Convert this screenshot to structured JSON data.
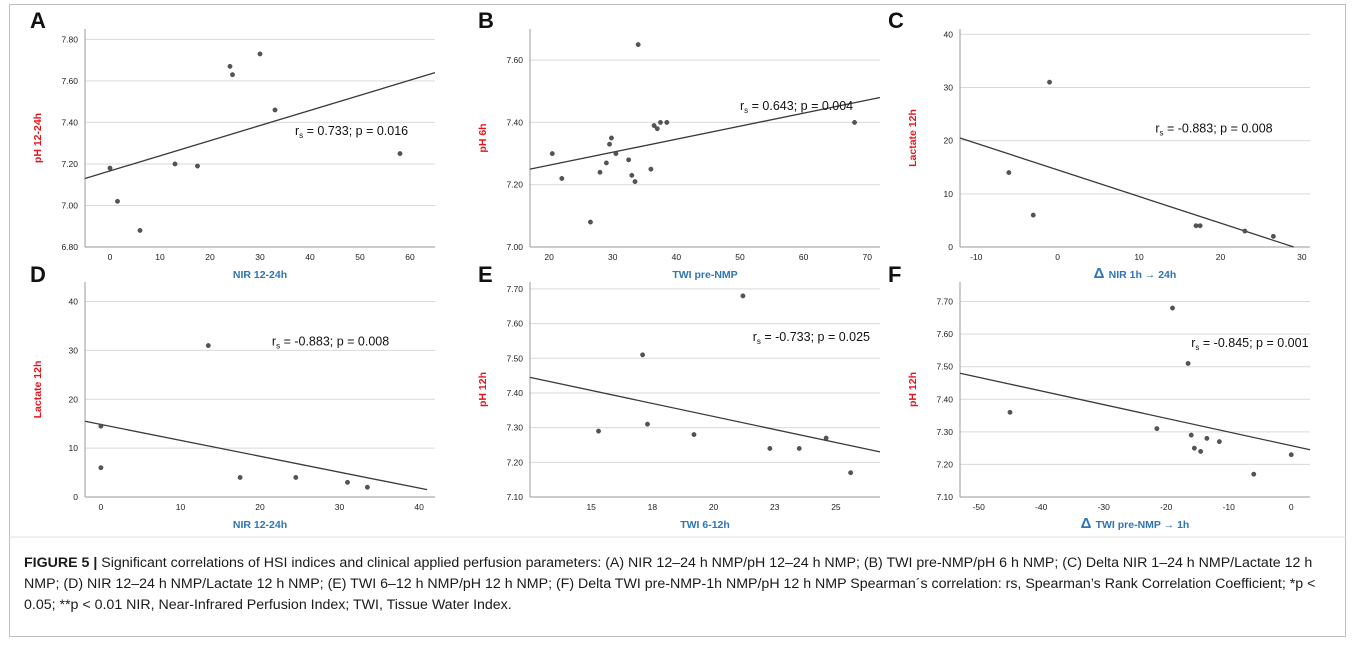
{
  "chart_data": [
    {
      "panel": "A",
      "type": "scatter",
      "xlabel": "NIR 12-24h",
      "ylabel": "pH 12-24h",
      "xlim": [
        -5,
        65
      ],
      "ylim": [
        6.8,
        7.85
      ],
      "xticks": [
        "0",
        "10",
        "20",
        "30",
        "40",
        "50",
        "60"
      ],
      "yticks": [
        "6.80",
        "7.00",
        "7.20",
        "7.40",
        "7.60",
        "7.80"
      ],
      "xtick_values": [
        0,
        10,
        20,
        30,
        40,
        50,
        60
      ],
      "ytick_values": [
        6.8,
        7.0,
        7.2,
        7.4,
        7.6,
        7.8
      ],
      "points": [
        [
          0,
          7.18
        ],
        [
          1.5,
          7.02
        ],
        [
          6,
          6.88
        ],
        [
          13,
          7.2
        ],
        [
          17.5,
          7.19
        ],
        [
          24,
          7.67
        ],
        [
          24.5,
          7.63
        ],
        [
          30,
          7.73
        ],
        [
          33,
          7.46
        ],
        [
          58,
          7.25
        ]
      ],
      "regression": [
        [
          -5,
          7.13
        ],
        [
          65,
          7.64
        ]
      ],
      "annotation": {
        "prefix": "r",
        "sub": "s",
        "text": " = 0.733; p = 0.016"
      },
      "annotation_pos": [
        37,
        7.34
      ],
      "xlabel_color": "#2e75b6",
      "ylabel_color": "#e8141b"
    },
    {
      "panel": "B",
      "type": "scatter",
      "xlabel": "TWI pre-NMP",
      "ylabel": "pH 6h",
      "xlim": [
        17,
        72
      ],
      "ylim": [
        7.0,
        7.7
      ],
      "xticks": [
        "20",
        "30",
        "40",
        "50",
        "60",
        "70"
      ],
      "yticks": [
        "7.00",
        "7.20",
        "7.40",
        "7.60"
      ],
      "xtick_values": [
        20,
        30,
        40,
        50,
        60,
        70
      ],
      "ytick_values": [
        7.0,
        7.2,
        7.4,
        7.6
      ],
      "points": [
        [
          20.5,
          7.3
        ],
        [
          22,
          7.22
        ],
        [
          26.5,
          7.08
        ],
        [
          28,
          7.24
        ],
        [
          29,
          7.27
        ],
        [
          29.5,
          7.33
        ],
        [
          29.8,
          7.35
        ],
        [
          30.5,
          7.3
        ],
        [
          32.5,
          7.28
        ],
        [
          33,
          7.23
        ],
        [
          33.5,
          7.21
        ],
        [
          34,
          7.65
        ],
        [
          36,
          7.25
        ],
        [
          36.5,
          7.39
        ],
        [
          37,
          7.38
        ],
        [
          37.5,
          7.4
        ],
        [
          38.5,
          7.4
        ],
        [
          68,
          7.4
        ]
      ],
      "regression": [
        [
          17,
          7.25
        ],
        [
          72,
          7.48
        ]
      ],
      "annotation": {
        "prefix": "r",
        "sub": "s",
        "text": " = 0.643; p = 0.004"
      },
      "annotation_pos": [
        50,
        7.44
      ],
      "xlabel_color": "#2e75b6",
      "ylabel_color": "#e8141b"
    },
    {
      "panel": "C",
      "type": "scatter",
      "xlabel": "NIR 1h → 24h",
      "ylabel": "Lactate 12h",
      "xlabel_delta": "Δ",
      "xlim": [
        -12,
        31
      ],
      "ylim": [
        0,
        41
      ],
      "xticks": [
        "-10",
        "0",
        "10",
        "20",
        "30"
      ],
      "yticks": [
        "0",
        "10",
        "20",
        "30",
        "40"
      ],
      "xtick_values": [
        -10,
        0,
        10,
        20,
        30
      ],
      "ytick_values": [
        0,
        10,
        20,
        30,
        40
      ],
      "points": [
        [
          -1,
          31
        ],
        [
          -6,
          14
        ],
        [
          -3,
          6
        ],
        [
          17,
          4
        ],
        [
          17.5,
          4
        ],
        [
          23,
          3
        ],
        [
          26.5,
          2
        ]
      ],
      "regression": [
        [
          -12,
          20.5
        ],
        [
          29,
          0
        ]
      ],
      "annotation": {
        "prefix": "r",
        "sub": "s",
        "text": " = -0.883; p = 0.008"
      },
      "annotation_pos": [
        12,
        21.5
      ],
      "xlabel_color": "#2e75b6",
      "ylabel_color": "#e8141b"
    },
    {
      "panel": "D",
      "type": "scatter",
      "xlabel": "NIR 12-24h",
      "ylabel": "Lactate 12h",
      "xlim": [
        -2,
        42
      ],
      "ylim": [
        0,
        44
      ],
      "xticks": [
        "0",
        "10",
        "20",
        "30",
        "40"
      ],
      "yticks": [
        "0",
        "10",
        "20",
        "30",
        "40"
      ],
      "xtick_values": [
        0,
        10,
        20,
        30,
        40
      ],
      "ytick_values": [
        0,
        10,
        20,
        30,
        40
      ],
      "points": [
        [
          0,
          14.5
        ],
        [
          0,
          6
        ],
        [
          13.5,
          31
        ],
        [
          17.5,
          4
        ],
        [
          24.5,
          4
        ],
        [
          31,
          3
        ],
        [
          33.5,
          2
        ]
      ],
      "regression": [
        [
          -2,
          15.5
        ],
        [
          41,
          1.5
        ]
      ],
      "annotation": {
        "prefix": "r",
        "sub": "s",
        "text": " = -0.883; p = 0.008"
      },
      "annotation_pos": [
        21.5,
        31
      ],
      "xlabel_color": "#2e75b6",
      "ylabel_color": "#e8141b"
    },
    {
      "panel": "E",
      "type": "scatter",
      "xlabel": "TWI 6-12h",
      "ylabel": "pH 12h",
      "xlim": [
        12.5,
        26.8
      ],
      "ylim": [
        7.1,
        7.72
      ],
      "xticks": [
        "15",
        "18",
        "20",
        "23",
        "25"
      ],
      "yticks": [
        "7.10",
        "7.20",
        "7.30",
        "7.40",
        "7.50",
        "7.60",
        "7.70"
      ],
      "xtick_values": [
        15,
        17.5,
        20,
        22.5,
        25
      ],
      "ytick_values": [
        7.1,
        7.2,
        7.3,
        7.4,
        7.5,
        7.6,
        7.7
      ],
      "points": [
        [
          15.3,
          7.29
        ],
        [
          17.1,
          7.51
        ],
        [
          17.3,
          7.31
        ],
        [
          19.2,
          7.28
        ],
        [
          21.2,
          7.68
        ],
        [
          22.3,
          7.24
        ],
        [
          23.5,
          7.24
        ],
        [
          24.6,
          7.27
        ],
        [
          25.6,
          7.17
        ]
      ],
      "regression": [
        [
          12.5,
          7.445
        ],
        [
          26.8,
          7.23
        ]
      ],
      "annotation": {
        "prefix": "r",
        "sub": "s",
        "text": " = -0.733; p = 0.025"
      },
      "annotation_pos": [
        21.6,
        7.55
      ],
      "xlabel_color": "#2e75b6",
      "ylabel_color": "#e8141b"
    },
    {
      "panel": "F",
      "type": "scatter",
      "xlabel": "TWI pre-NMP → 1h",
      "ylabel": "pH 12h",
      "xlabel_delta": "Δ",
      "xlim": [
        -53,
        3
      ],
      "ylim": [
        7.1,
        7.76
      ],
      "xticks": [
        "-50",
        "-40",
        "-30",
        "-20",
        "-10",
        "0"
      ],
      "yticks": [
        "7.10",
        "7.20",
        "7.30",
        "7.40",
        "7.50",
        "7.60",
        "7.70"
      ],
      "xtick_values": [
        -50,
        -40,
        -30,
        -20,
        -10,
        0
      ],
      "ytick_values": [
        7.1,
        7.2,
        7.3,
        7.4,
        7.5,
        7.6,
        7.7
      ],
      "points": [
        [
          -45,
          7.36
        ],
        [
          -21.5,
          7.31
        ],
        [
          -19,
          7.68
        ],
        [
          -16.5,
          7.51
        ],
        [
          -16,
          7.29
        ],
        [
          -15.5,
          7.25
        ],
        [
          -14.5,
          7.24
        ],
        [
          -13.5,
          7.28
        ],
        [
          -11.5,
          7.27
        ],
        [
          -6,
          7.17
        ],
        [
          0,
          7.23
        ]
      ],
      "regression": [
        [
          -53,
          7.48
        ],
        [
          3,
          7.245
        ]
      ],
      "annotation": {
        "prefix": "r",
        "sub": "s",
        "text": " = -0.845; p = 0.001"
      },
      "annotation_pos": [
        -16,
        7.56
      ],
      "xlabel_color": "#2e75b6",
      "ylabel_color": "#e8141b"
    }
  ],
  "caption": {
    "label": "FIGURE 5 |",
    "body": " Significant correlations of HSI indices and clinical applied perfusion parameters: (A) NIR 12–24 h NMP/pH 12–24 h NMP; (B) TWI pre-NMP/pH 6 h NMP; (C) Delta NIR 1–24 h NMP/Lactate 12 h NMP; (D) NIR 12–24 h NMP/Lactate 12 h NMP; (E) TWI 6–12 h NMP/pH 12 h NMP; (F) Delta TWI pre-NMP-1h NMP/pH 12 h NMP Spearman´s correlation: rs, Spearman’s Rank Correlation Coefficient; *p < 0.05; **p < 0.01 NIR, Near-Infrared Perfusion Index; TWI, Tissue Water Index."
  }
}
